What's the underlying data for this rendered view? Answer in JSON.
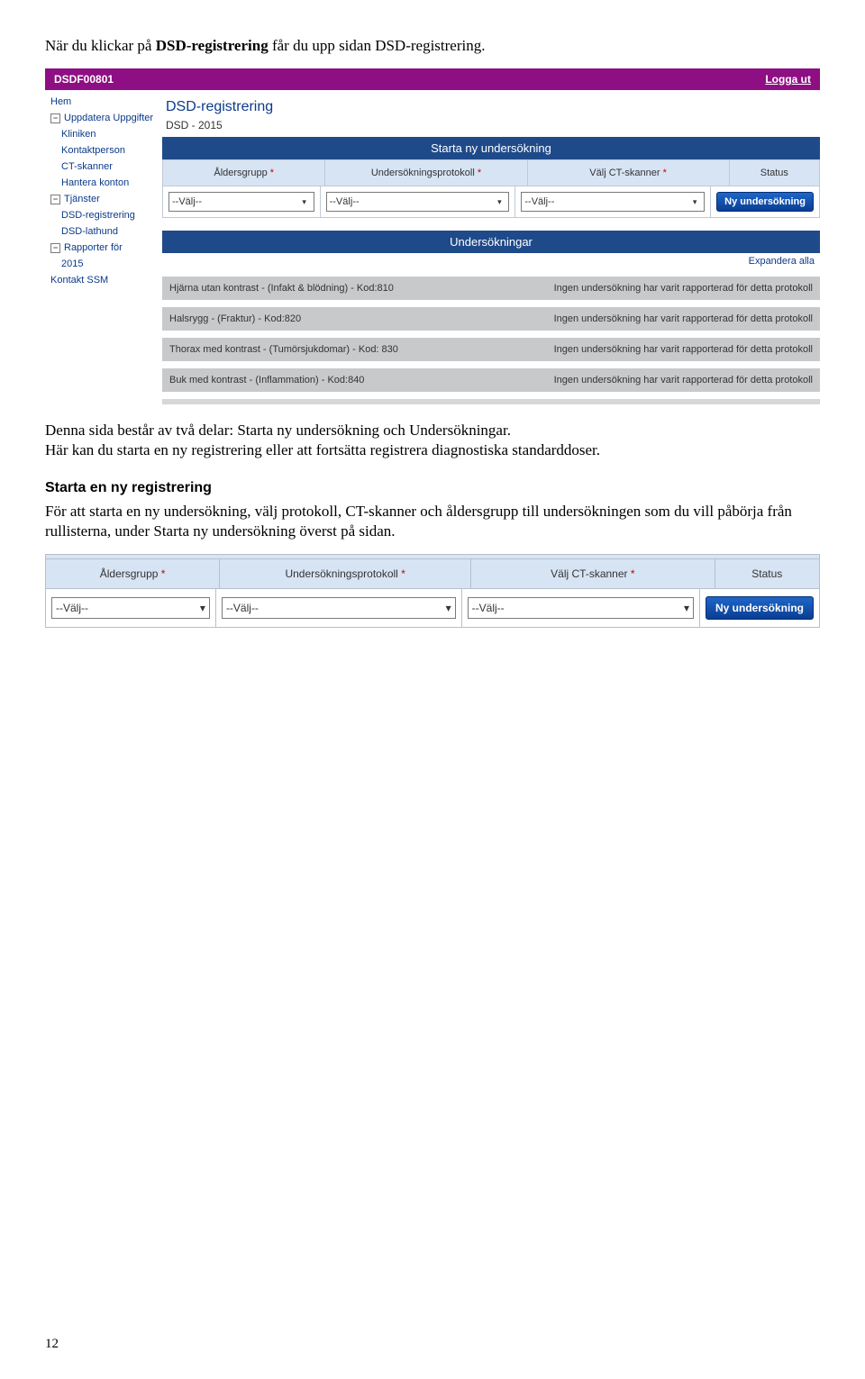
{
  "intro_line_before": "När du klickar på ",
  "intro_bold": "DSD-registrering",
  "intro_line_after": " får du upp sidan DSD-registrering.",
  "para2a": "Denna sida består av två delar: Starta ny undersökning och Undersökningar.",
  "para2b": "Här kan du starta en ny registrering eller att fortsätta registrera diagnostiska standarddoser.",
  "heading": "Starta en ny registrering",
  "para3": "För att starta en ny undersökning, välj protokoll, CT-skanner och åldersgrupp till undersökningen som du vill påbörja från rullisterna, under Starta ny undersökning överst på sidan.",
  "page_num": "12",
  "shot1": {
    "header_code": "DSDF00801",
    "logout": "Logga ut",
    "page_title": "DSD-registrering",
    "subtitle": "DSD - 2015",
    "start_header": "Starta ny undersökning",
    "cols": {
      "age": "Åldersgrupp",
      "proto": "Undersökningsprotokoll",
      "scanner": "Välj CT-skanner",
      "status": "Status"
    },
    "select_default": "--Välj--",
    "new_button": "Ny undersökning",
    "surveys_header": "Undersökningar",
    "expand_all": "Expandera alla",
    "survey_items": [
      {
        "left": "Hjärna utan kontrast - (Infakt & blödning) - Kod:810",
        "right": "Ingen undersökning har varit rapporterad för detta protokoll"
      },
      {
        "left": "Halsrygg - (Fraktur) - Kod:820",
        "right": "Ingen undersökning har varit rapporterad för detta protokoll"
      },
      {
        "left": "Thorax med kontrast - (Tumörsjukdomar) - Kod: 830",
        "right": "Ingen undersökning har varit rapporterad för detta protokoll"
      },
      {
        "left": "Buk med kontrast - (Inflammation) - Kod:840",
        "right": "Ingen undersökning har varit rapporterad för detta protokoll"
      }
    ],
    "sidebar": [
      {
        "label": "Hem",
        "box": false
      },
      {
        "label": "Uppdatera Uppgifter",
        "box": true
      },
      {
        "label": "Kliniken",
        "box": false,
        "sub": true
      },
      {
        "label": "Kontaktperson",
        "box": false,
        "sub": true
      },
      {
        "label": "CT-skanner",
        "box": false,
        "sub": true
      },
      {
        "label": "Hantera konton",
        "box": false,
        "sub": true
      },
      {
        "label": "Tjänster",
        "box": true
      },
      {
        "label": "DSD-registrering",
        "box": false,
        "sub": true
      },
      {
        "label": "DSD-lathund",
        "box": false,
        "sub": true
      },
      {
        "label": "Rapporter för",
        "box": true
      },
      {
        "label": "2015",
        "box": false,
        "sub": true
      },
      {
        "label": "Kontakt SSM",
        "box": false
      }
    ]
  },
  "colors": {
    "purple": "#8e0e84",
    "blue_header": "#1f4a8a",
    "light_blue": "#d7e4f4",
    "nav_text": "#0b3a8a",
    "gray_row": "#c8c9cb",
    "button_blue_top": "#1f66c9",
    "button_blue_bot": "#0a3e93"
  }
}
